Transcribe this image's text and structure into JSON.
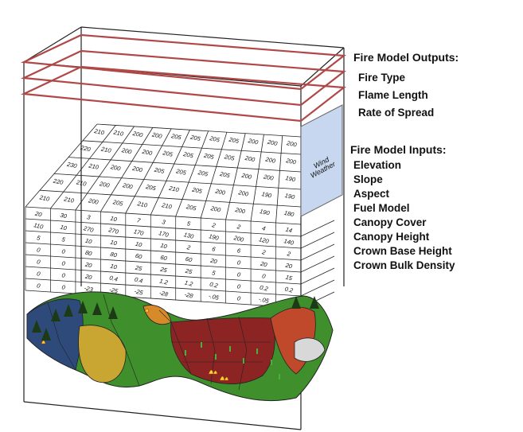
{
  "outputs": {
    "heading": "Fire Model Outputs:",
    "items": [
      "Fire Type",
      "Flame Length",
      "Rate of Spread"
    ]
  },
  "inputs": {
    "heading": "Fire Model Inputs:",
    "items": [
      "Elevation",
      "Slope",
      "Aspect",
      "Fuel Model",
      "Canopy Cover",
      "Canopy Height",
      "Crown Base Height",
      "Crown Bulk Density"
    ]
  },
  "weather_panel": {
    "line1": "Wind",
    "line2": "Weather"
  },
  "grid_rows": [
    [
      "210",
      "210",
      "200",
      "200",
      "205",
      "205",
      "205",
      "205",
      "200",
      "200",
      "200"
    ],
    [
      "220",
      "210",
      "200",
      "200",
      "205",
      "205",
      "205",
      "205",
      "200",
      "200",
      "200"
    ],
    [
      "230",
      "210",
      "200",
      "200",
      "205",
      "205",
      "205",
      "205",
      "200",
      "200",
      "190"
    ],
    [
      "220",
      "210",
      "200",
      "200",
      "205",
      "210",
      "205",
      "200",
      "200",
      "190",
      "190"
    ],
    [
      "210",
      "210",
      "200",
      "205",
      "210",
      "210",
      "205",
      "200",
      "200",
      "190",
      "180"
    ],
    [
      "20",
      "30",
      "3",
      "10",
      "7",
      "3",
      "5",
      "2",
      "2",
      "4",
      "14"
    ],
    [
      "110",
      "10",
      "270",
      "270",
      "170",
      "170",
      "130",
      "190",
      "200",
      "120",
      "140"
    ],
    [
      "5",
      "5",
      "10",
      "10",
      "10",
      "10",
      "2",
      "6",
      "6",
      "2",
      "2"
    ],
    [
      "0",
      "0",
      "80",
      "80",
      "60",
      "60",
      "60",
      "20",
      "0",
      "20",
      "20"
    ],
    [
      "0",
      "0",
      "20",
      "10",
      "25",
      "25",
      "25",
      "5",
      "0",
      "0",
      "15"
    ],
    [
      "0",
      "0",
      "20",
      "0.4",
      "0.4",
      "1.2",
      "1.2",
      "0.2",
      "0",
      "0.2",
      "0.2"
    ],
    [
      "0",
      "0",
      "-23",
      "-25",
      "-25",
      "-28",
      "-28",
      "-.05",
      "0",
      "-.05",
      "-.05"
    ]
  ],
  "colors": {
    "output_lines": "#b04848",
    "weather_panel": "#c7d7f0",
    "terrain_green": "#3f8f2c",
    "terrain_red": "#8c2424",
    "terrain_blue": "#2d4a7a",
    "terrain_yellow": "#d9b42a"
  }
}
